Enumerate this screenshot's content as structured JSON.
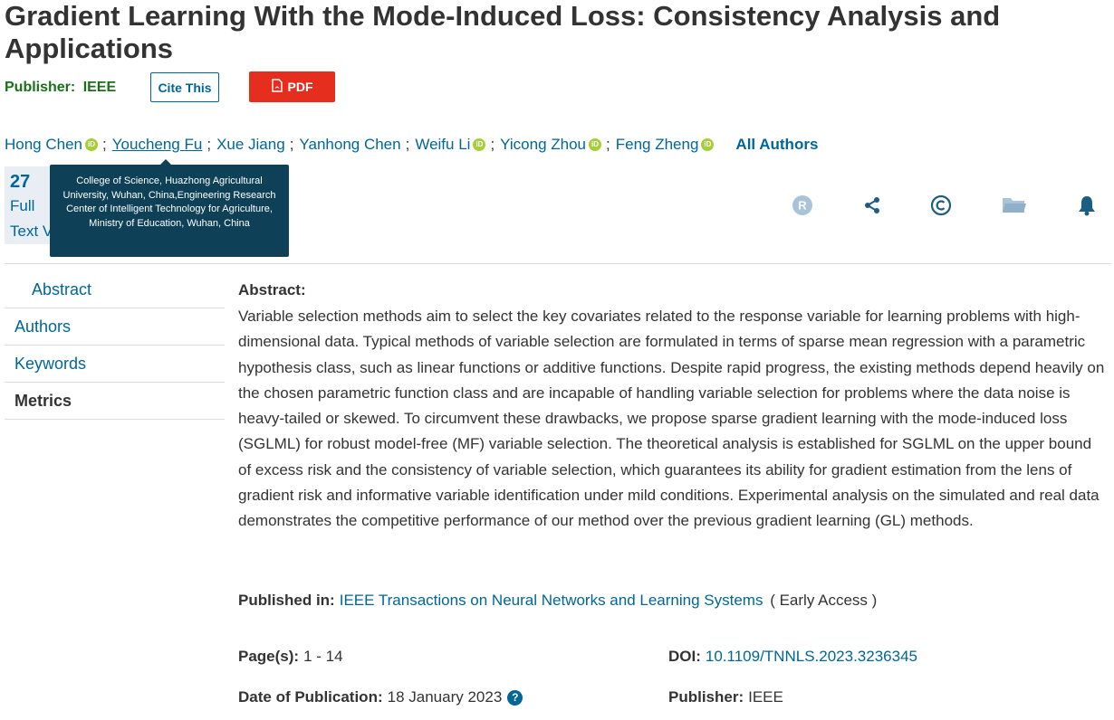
{
  "title": "Gradient Learning With the Mode-Induced Loss: Consistency Analysis and Applications",
  "header": {
    "publisher_label": "Publisher:",
    "publisher_value": "IEEE",
    "cite_label": "Cite This",
    "pdf_label": "PDF"
  },
  "authors": [
    {
      "name": "Hong Chen",
      "orcid": true
    },
    {
      "name": "Youcheng Fu",
      "orcid": false
    },
    {
      "name": "Xue Jiang",
      "orcid": false
    },
    {
      "name": "Yanhong Chen",
      "orcid": false
    },
    {
      "name": "Weifu Li",
      "orcid": true
    },
    {
      "name": "Yicong Zhou",
      "orcid": true
    },
    {
      "name": "Feng Zheng",
      "orcid": true
    }
  ],
  "authors_sep": ";",
  "all_authors_label": "All Authors",
  "orcid_glyph": "iD",
  "metrics": {
    "count": "27",
    "label_line1": "Full",
    "label_line2": "Text Views"
  },
  "tooltip": {
    "text": "College of Science, Huazhong Agricultural University, Wuhan, China,Engineering Research Center of Intelligent Technology for Agriculture, Ministry of Education, Wuhan, China"
  },
  "toolbar_icons": [
    "rights-icon",
    "share-icon",
    "copyright-icon",
    "folder-icon",
    "bell-icon"
  ],
  "sidenav": [
    {
      "label": "Abstract"
    },
    {
      "label": "Authors"
    },
    {
      "label": "Keywords"
    },
    {
      "label": "Metrics"
    }
  ],
  "abstract": {
    "heading": "Abstract:",
    "text": "Variable selection methods aim to select the key covariates related to the response variable for learning problems with high-dimensional data. Typical methods of variable selection are formulated in terms of sparse mean regression with a parametric hypothesis class, such as linear functions or additive functions. Despite rapid progress, the existing methods depend heavily on the chosen parametric function class and are incapable of handling variable selection for problems where the data noise is heavy-tailed or skewed. To circumvent these drawbacks, we propose sparse gradient learning with the mode-induced loss (SGLML) for robust model-free (MF) variable selection. The theoretical analysis is established for SGLML on the upper bound of excess risk and the consistency of variable selection, which guarantees its ability for gradient estimation from the lens of gradient risk and informative variable identification under mild conditions. Experimental analysis on the simulated and real data demonstrates the competitive performance of our method over the previous gradient learning (GL) methods."
  },
  "published_in": {
    "label": "Published in:",
    "journal": "IEEE Transactions on Neural Networks and Learning Systems",
    "suffix": "( Early Access )"
  },
  "details": {
    "pages_label": "Page(s):",
    "pages_value": "1 - 14",
    "doi_label": "DOI:",
    "doi_value": "10.1109/TNNLS.2023.3236345",
    "date_label": "Date of Publication:",
    "date_value": "18 January 2023",
    "help_glyph": "?",
    "publisher_label": "Publisher:",
    "publisher_value": "IEEE"
  },
  "colors": {
    "link": "#006699",
    "publisher_green": "#1b6e1b",
    "pdf_red": "#e62e1f",
    "tooltip_bg": "#0e4157",
    "orcid_green": "#a6ce39"
  }
}
